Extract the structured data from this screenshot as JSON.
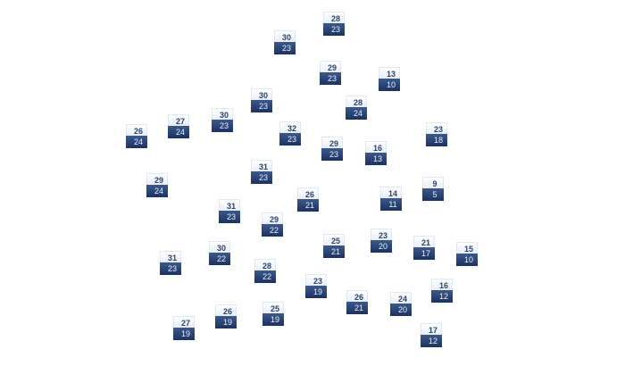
{
  "markers": [
    {
      "high": "28",
      "low": "23"
    },
    {
      "high": "30",
      "low": "23"
    },
    {
      "high": "29",
      "low": "23"
    },
    {
      "high": "13",
      "low": "10"
    },
    {
      "high": "30",
      "low": "23"
    },
    {
      "high": "28",
      "low": "24"
    },
    {
      "high": "27",
      "low": "24"
    },
    {
      "high": "30",
      "low": "23"
    },
    {
      "high": "26",
      "low": "24"
    },
    {
      "high": "32",
      "low": "23"
    },
    {
      "high": "29",
      "low": "23"
    },
    {
      "high": "16",
      "low": "13"
    },
    {
      "high": "23",
      "low": "18"
    },
    {
      "high": "31",
      "low": "23"
    },
    {
      "high": "29",
      "low": "24"
    },
    {
      "high": "26",
      "low": "21"
    },
    {
      "high": "14",
      "low": "11"
    },
    {
      "high": "9",
      "low": "5"
    },
    {
      "high": "31",
      "low": "23"
    },
    {
      "high": "29",
      "low": "22"
    },
    {
      "high": "25",
      "low": "21"
    },
    {
      "high": "23",
      "low": "20"
    },
    {
      "high": "21",
      "low": "17"
    },
    {
      "high": "15",
      "low": "10"
    },
    {
      "high": "30",
      "low": "22"
    },
    {
      "high": "31",
      "low": "23"
    },
    {
      "high": "28",
      "low": "22"
    },
    {
      "high": "23",
      "low": "19"
    },
    {
      "high": "16",
      "low": "12"
    },
    {
      "high": "26",
      "low": "21"
    },
    {
      "high": "24",
      "low": "20"
    },
    {
      "high": "26",
      "low": "19"
    },
    {
      "high": "25",
      "low": "19"
    },
    {
      "high": "27",
      "low": "19"
    },
    {
      "high": "17",
      "low": "12"
    }
  ],
  "colors": {
    "high_text": "#2c4470",
    "low_bg": "#1c3260",
    "low_text": "#e8eef8"
  }
}
